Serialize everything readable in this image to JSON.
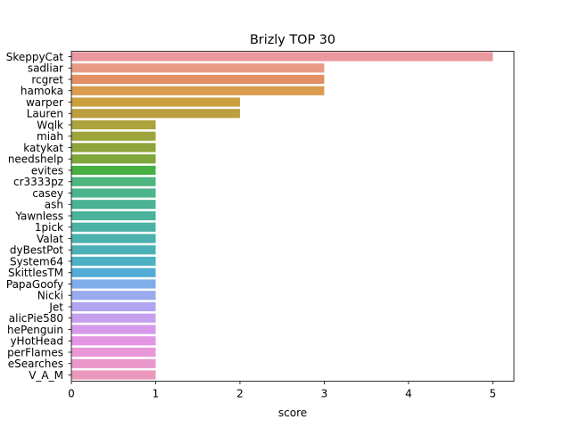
{
  "chart_data": {
    "type": "bar",
    "orientation": "horizontal",
    "title": "Brizly TOP 30",
    "xlabel": "score",
    "ylabel": "",
    "xlim": [
      0,
      5.25
    ],
    "xticks": [
      0,
      1,
      2,
      3,
      4,
      5
    ],
    "grid": false,
    "categories": [
      "SkeppyCat",
      "sadliar",
      "rcgret",
      "hamoka",
      "warper",
      "Lauren",
      "Wqlk",
      "miah",
      "katykat",
      "needshelp",
      "evites",
      "cr3333pz",
      "casey",
      "ash",
      "Yawnless",
      "1pick",
      "Valat",
      "dyBestPot",
      "System64",
      "SkittlesTM",
      "PapaGoofy",
      "Nicki",
      "Jet",
      "alicPie580",
      "hePenguin",
      "yHotHead",
      "perFlames",
      "eSearches",
      "V_A_M"
    ],
    "values": [
      5,
      3,
      3,
      3,
      2,
      2,
      1,
      1,
      1,
      1,
      1,
      1,
      1,
      1,
      1,
      1,
      1,
      1,
      1,
      1,
      1,
      1,
      1,
      1,
      1,
      1,
      1,
      1,
      1
    ],
    "colors": [
      "#ea979d",
      "#e99a84",
      "#e38f64",
      "#d99c4e",
      "#cc9f3e",
      "#bca040",
      "#aca33c",
      "#9da43b",
      "#8ea43b",
      "#7fa63b",
      "#46b043",
      "#4eb57f",
      "#4cb38c",
      "#4bb294",
      "#4bb29c",
      "#4bb1a5",
      "#4bb1ad",
      "#4bb0b5",
      "#4db0c3",
      "#53acd6",
      "#80adea",
      "#9aaaee",
      "#b0a5f0",
      "#c4a0ef",
      "#d59ae9",
      "#e296e4",
      "#e997d7",
      "#ea97cc",
      "#ea98bb"
    ]
  }
}
